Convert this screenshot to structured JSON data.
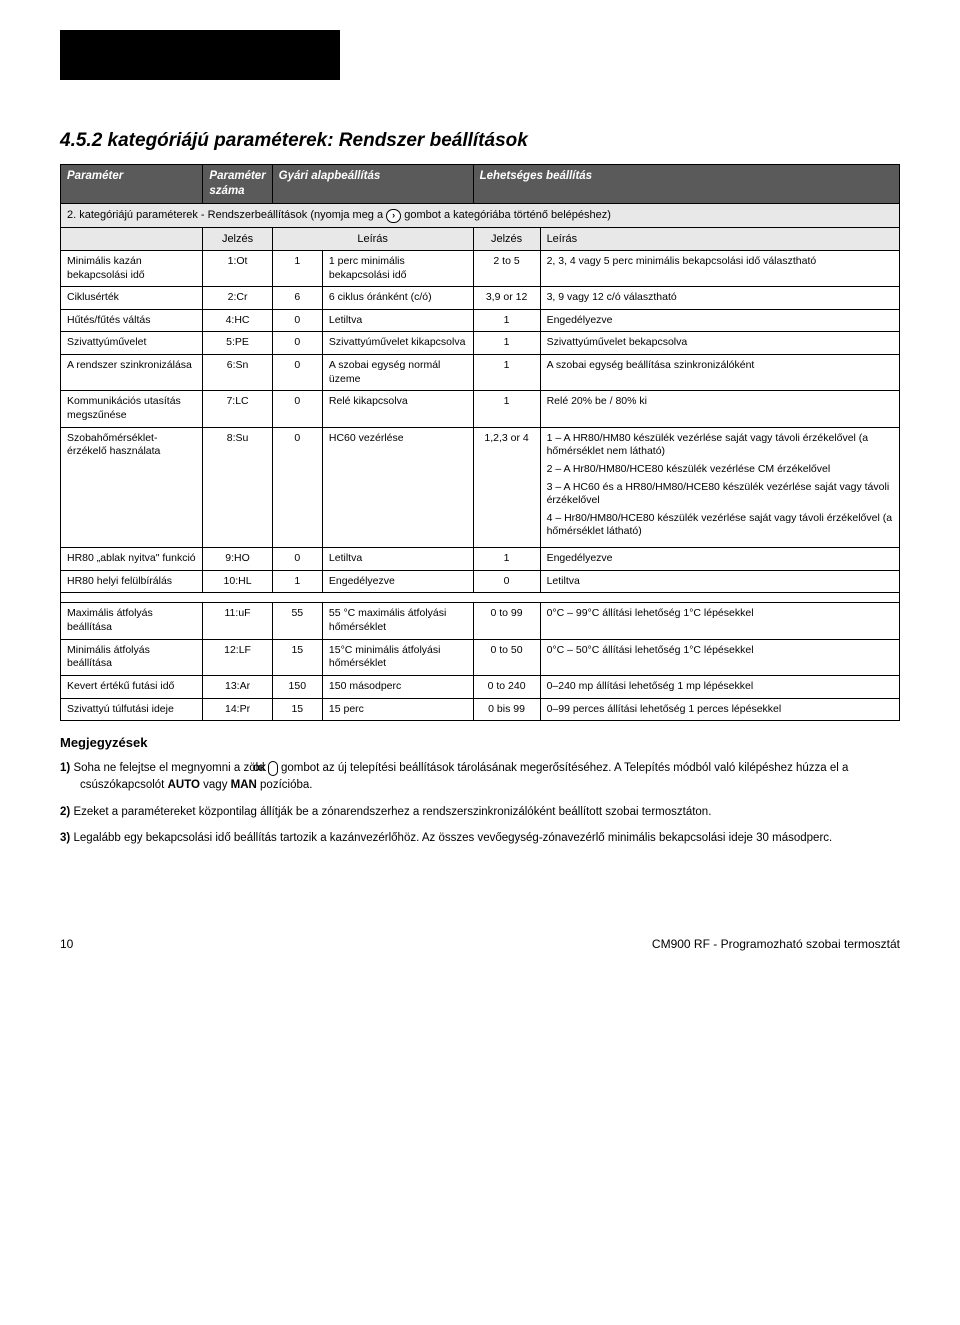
{
  "topbar_color": "#000000",
  "heading": "4.5.2 kategóriájú paraméterek: Rendszer beállítások",
  "table": {
    "head": {
      "c1": "Paraméter",
      "c2": "Paraméter száma",
      "c3": "Gyári alapbeállítás",
      "c4": "Lehetséges beállítás"
    },
    "subhead_prefix": "2. kategóriájú paraméterek - Rendszerbeállítások (nyomja meg a",
    "subhead_suffix": "gombot a kategóriába történő belépéshez)",
    "sub_cols": {
      "c1": "Jelzés",
      "c2": "Leírás",
      "c3": "Jelzés",
      "c4": "Leírás"
    },
    "rows": [
      {
        "c1": "Minimális kazán bekapcsolási idő",
        "c2": "1:Ot",
        "c3": "1",
        "c4": "1 perc minimális bekapcsolási idő",
        "c5": "2 to 5",
        "c6": "2, 3, 4 vagy 5 perc minimális bekapcsolási idő választható"
      },
      {
        "c1": "Ciklusérték",
        "c2": "2:Cr",
        "c3": "6",
        "c4": "6 ciklus óránként (c/ó)",
        "c5": "3,9 or 12",
        "c6": "3, 9 vagy 12 c/ó választható"
      },
      {
        "c1": "Hűtés/fűtés váltás",
        "c2": "4:HC",
        "c3": "0",
        "c4": "Letiltva",
        "c5": "1",
        "c6": "Engedélyezve"
      },
      {
        "c1": "Szivattyúművelet",
        "c2": "5:PE",
        "c3": "0",
        "c4": "Szivattyúművelet kikapcsolva",
        "c5": "1",
        "c6": "Szivattyúművelet bekapcsolva"
      },
      {
        "c1": "A rendszer szinkronizálása",
        "c2": "6:Sn",
        "c3": "0",
        "c4": "A szobai egység normál üzeme",
        "c5": "1",
        "c6": "A szobai egység beállítása szinkronizálóként"
      },
      {
        "c1": "Kommunikációs utasítás megszűnése",
        "c2": "7:LC",
        "c3": "0",
        "c4": "Relé kikapcsolva",
        "c5": "1",
        "c6": "Relé 20% be / 80% ki"
      },
      {
        "c1": "Szobahőmérséklet-érzékelő használata",
        "c2": "8:Su",
        "c3": "0",
        "c4": "HC60 vezérlése",
        "c5": "1,2,3 or 4",
        "c6": "1 – A HR80/HM80 készülék vezérlése saját vagy távoli érzékelővel (a hőmérséklet nem látható)\n2 – A Hr80/HM80/HCE80 készülék vezérlése CM érzékelővel\n3 – A HC60 és a HR80/HM80/HCE80 készülék vezérlése saját vagy távoli érzékelővel\n4 – Hr80/HM80/HCE80 készülék vezérlése saját vagy távoli érzékelővel (a hőmérséklet látható)"
      },
      {
        "c1": "HR80 „ablak nyitva\" funkció",
        "c2": "9:HO",
        "c3": "0",
        "c4": "Letiltva",
        "c5": "1",
        "c6": "Engedélyezve"
      },
      {
        "c1": "HR80 helyi felülbírálás",
        "c2": "10:HL",
        "c3": "1",
        "c4": "Engedélyezve",
        "c5": "0",
        "c6": "Letiltva"
      },
      {
        "c1": "Maximális átfolyás beállítása",
        "c2": "11:uF",
        "c3": "55",
        "c4": "55 °C maximális átfolyási hőmérséklet",
        "c5": "0 to 99",
        "c6": "0°C – 99°C állítási lehetőség 1°C lépésekkel"
      },
      {
        "c1": "Minimális átfolyás beállítása",
        "c2": "12:LF",
        "c3": "15",
        "c4": "15°C minimális átfolyási hőmérséklet",
        "c5": "0 to 50",
        "c6": "0°C – 50°C állítási lehetőség 1°C lépésekkel"
      },
      {
        "c1": "Kevert értékű futási idő",
        "c2": "13:Ar",
        "c3": "150",
        "c4": "150 másodperc",
        "c5": "0 to 240",
        "c6": "0–240 mp állítási lehetőség 1 mp lépésekkel"
      },
      {
        "c1": "Szivattyú túlfutási ideje",
        "c2": "14:Pr",
        "c3": "15",
        "c4": "15 perc",
        "c5": "0 bis 99",
        "c6": "0–99 perces állítási lehetőség 1 perces lépésekkel"
      }
    ]
  },
  "notes_heading": "Megjegyzések",
  "notes": [
    {
      "num": "1)",
      "pre": "Soha ne felejtse el megnyomni a zöld ",
      "badge": "OK",
      "post": " gombot az új telepítési beállítások tárolásának megerősítéséhez. A Telepítés módból való kilépéshez húzza el a csúszókapcsolót ",
      "bold1": "AUTO",
      "mid": " vagy ",
      "bold2": "MAN",
      "end": " pozícióba."
    },
    {
      "num": "2)",
      "text": "Ezeket a paramétereket központilag állítják be a zónarendszerhez a rendszerszinkronizálóként beállított szobai termosztáton."
    },
    {
      "num": "3)",
      "text": "Legalább egy bekapcsolási idő beállítás tartozik a kazánvezérlőhöz. Az összes vevőegység-zónavezérlő minimális bekapcsolási ideje 30 másodperc."
    }
  ],
  "footer": {
    "page": "10",
    "title": "CM900 RF - Programozható szobai termosztát"
  }
}
